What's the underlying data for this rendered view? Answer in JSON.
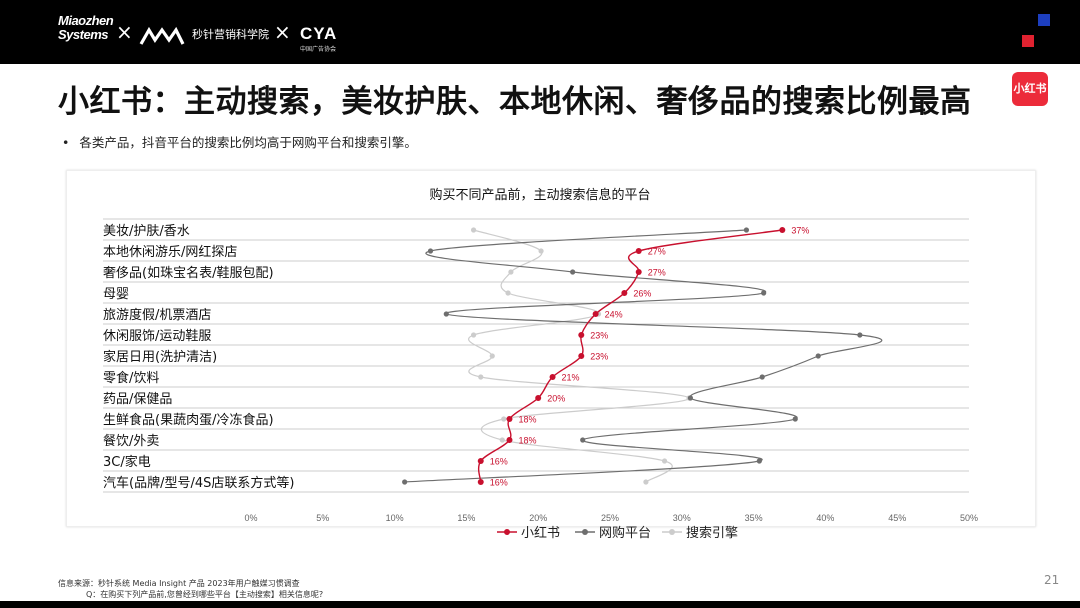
{
  "header": {
    "logo_miaozhen": "Miaozhen Systems",
    "separator": "×",
    "logo_mm_name": "秒针营销科学院",
    "logo_cya": "CYA",
    "logo_cya_sub": "中国广告协会"
  },
  "title": "小红书：主动搜索，美妆护肤、本地休闲、奢侈品的搜索比例最高",
  "badge": "小红书",
  "bullet": "各类产品，抖音平台的搜索比例均高于网购平台和搜索引擎。",
  "chart_data": {
    "type": "line",
    "title": "购买不同产品前，主动搜索信息的平台",
    "categories": [
      "美妆/护肤/香水",
      "本地休闲游乐/网红探店",
      "奢侈品(如珠宝名表/鞋服包配)",
      "母婴",
      "旅游度假/机票酒店",
      "休闲服饰/运动鞋服",
      "家居日用(洗护清洁)",
      "零食/饮料",
      "药品/保健品",
      "生鲜食品(果蔬肉蛋/冷冻食品)",
      "餐饮/外卖",
      "3C/家电",
      "汽车(品牌/型号/4S店联系方式等)"
    ],
    "x_ticks": [
      "0%",
      "5%",
      "10%",
      "15%",
      "20%",
      "25%",
      "30%",
      "35%",
      "40%",
      "45%",
      "50%"
    ],
    "xlim": [
      0,
      50
    ],
    "series": [
      {
        "name": "小红书",
        "color": "#c8102e",
        "labeled": true,
        "values": [
          37,
          27,
          27,
          26,
          24,
          23,
          23,
          21,
          20,
          18,
          18,
          16,
          16
        ],
        "labels": [
          "37%",
          "27%",
          "27%",
          "26%",
          "24%",
          "23%",
          "23%",
          "21%",
          "20%",
          "18%",
          "18%",
          "16%",
          "16%"
        ]
      },
      {
        "name": "网购平台",
        "color": "#6e6e6e",
        "labeled": false,
        "values": [
          34.5,
          12.5,
          22.4,
          35.7,
          13.6,
          42.4,
          39.5,
          35.6,
          30.6,
          37.9,
          23.1,
          35.4,
          10.7
        ]
      },
      {
        "name": "搜索引擎",
        "color": "#cccccc",
        "labeled": false,
        "values": [
          15.5,
          20.2,
          18.1,
          17.9,
          24.2,
          15.5,
          16.8,
          16.0,
          30.5,
          17.6,
          17.5,
          28.8,
          27.5
        ]
      }
    ],
    "legend_position": "bottom-center",
    "grid": "horizontal"
  },
  "footer": {
    "source": "信息来源：秒针系统 Media Insight 产品 2023年用户触媒习惯调查",
    "question": "Q：在购买下列产品前,您曾经到哪些平台【主动搜索】相关信息呢?"
  },
  "page_number": "21"
}
